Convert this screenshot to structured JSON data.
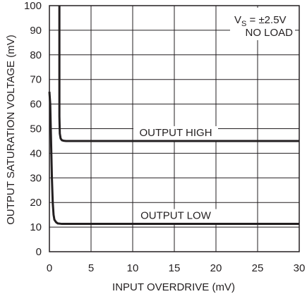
{
  "chart_data": {
    "type": "line",
    "title": "",
    "xlabel": "INPUT OVERDRIVE (mV)",
    "ylabel": "OUTPUT SATURATION VOLTAGE (mV)",
    "xlim": [
      0,
      30
    ],
    "ylim": [
      0,
      100
    ],
    "x_ticks": [
      0,
      5,
      10,
      15,
      20,
      25,
      30
    ],
    "y_ticks": [
      0,
      10,
      20,
      30,
      40,
      50,
      60,
      70,
      80,
      90,
      100
    ],
    "grid": true,
    "colors": {
      "grid": "#231f20",
      "line": "#231f20"
    },
    "annotations": {
      "condition_vs_prefix": "V",
      "condition_vs_sub": "S",
      "condition_vs_value": " = ±2.5V",
      "condition_load": "NO LOAD"
    },
    "series": [
      {
        "name": "OUTPUT HIGH",
        "x": [
          1.2,
          1.2,
          1.25,
          1.35,
          1.5,
          1.7,
          2,
          3,
          5,
          10,
          15,
          20,
          25,
          30
        ],
        "y": [
          100,
          55,
          48,
          46,
          45.3,
          45.1,
          45,
          45,
          45,
          45,
          45,
          45,
          45,
          45
        ]
      },
      {
        "name": "OUTPUT LOW",
        "x": [
          0,
          0.1,
          0.2,
          0.3,
          0.4,
          0.5,
          0.6,
          0.8,
          1,
          1.5,
          2,
          5,
          10,
          20,
          30
        ],
        "y": [
          65,
          60,
          45,
          30,
          20,
          15,
          13,
          12,
          11.5,
          11.3,
          11.3,
          11.3,
          11.3,
          11.3,
          11.3
        ]
      }
    ]
  }
}
